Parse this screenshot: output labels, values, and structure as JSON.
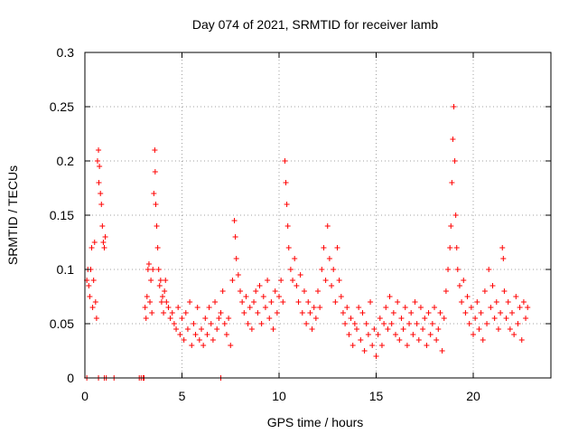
{
  "chart_data": {
    "type": "scatter",
    "title": "Day 074 of 2021, SRMTID for receiver lamb",
    "xlabel": "GPS time / hours",
    "ylabel": "SRMTID / TECUs",
    "xlim": [
      0,
      24
    ],
    "ylim": [
      0,
      0.3
    ],
    "xticks": [
      0,
      5,
      10,
      15,
      20
    ],
    "xtick_labels": [
      "0",
      "5",
      "10",
      "15",
      "20"
    ],
    "yticks": [
      0,
      0.05,
      0.1,
      0.15,
      0.2,
      0.25,
      0.3
    ],
    "ytick_labels": [
      "0",
      "0.05",
      "0.1",
      "0.15",
      "0.2",
      "0.25",
      "0.3"
    ],
    "grid": true,
    "marker": "+",
    "color": "#ff0000",
    "series": [
      {
        "name": "SRMTID",
        "points": [
          [
            0.1,
            0.09
          ],
          [
            0.15,
            0.1
          ],
          [
            0.2,
            0.085
          ],
          [
            0.25,
            0.075
          ],
          [
            0.3,
            0.1
          ],
          [
            0.35,
            0.12
          ],
          [
            0.4,
            0.065
          ],
          [
            0.45,
            0.09
          ],
          [
            0.5,
            0.125
          ],
          [
            0.55,
            0.07
          ],
          [
            0.6,
            0.055
          ],
          [
            0.65,
            0.2
          ],
          [
            0.7,
            0.21
          ],
          [
            0.72,
            0.18
          ],
          [
            0.75,
            0.195
          ],
          [
            0.8,
            0.17
          ],
          [
            0.85,
            0.16
          ],
          [
            0.9,
            0.14
          ],
          [
            0.95,
            0.125
          ],
          [
            1.0,
            0.12
          ],
          [
            1.05,
            0.13
          ],
          [
            3.1,
            0.065
          ],
          [
            3.15,
            0.055
          ],
          [
            3.2,
            0.075
          ],
          [
            3.25,
            0.1
          ],
          [
            3.3,
            0.105
          ],
          [
            3.35,
            0.07
          ],
          [
            3.4,
            0.09
          ],
          [
            3.45,
            0.06
          ],
          [
            3.5,
            0.1
          ],
          [
            3.55,
            0.17
          ],
          [
            3.6,
            0.21
          ],
          [
            3.62,
            0.19
          ],
          [
            3.65,
            0.16
          ],
          [
            3.7,
            0.14
          ],
          [
            3.75,
            0.12
          ],
          [
            3.8,
            0.1
          ],
          [
            3.85,
            0.085
          ],
          [
            3.9,
            0.09
          ],
          [
            3.95,
            0.07
          ],
          [
            4.0,
            0.075
          ],
          [
            4.05,
            0.06
          ],
          [
            4.1,
            0.08
          ],
          [
            4.15,
            0.09
          ],
          [
            4.2,
            0.07
          ],
          [
            4.3,
            0.065
          ],
          [
            4.4,
            0.055
          ],
          [
            4.5,
            0.06
          ],
          [
            4.6,
            0.05
          ],
          [
            4.7,
            0.045
          ],
          [
            4.8,
            0.065
          ],
          [
            4.9,
            0.04
          ],
          [
            5.0,
            0.055
          ],
          [
            5.1,
            0.035
          ],
          [
            5.2,
            0.06
          ],
          [
            5.3,
            0.045
          ],
          [
            5.4,
            0.07
          ],
          [
            5.5,
            0.03
          ],
          [
            5.6,
            0.05
          ],
          [
            5.7,
            0.04
          ],
          [
            5.8,
            0.065
          ],
          [
            5.9,
            0.035
          ],
          [
            6.0,
            0.045
          ],
          [
            6.1,
            0.03
          ],
          [
            6.2,
            0.055
          ],
          [
            6.3,
            0.04
          ],
          [
            6.4,
            0.065
          ],
          [
            6.5,
            0.05
          ],
          [
            6.6,
            0.035
          ],
          [
            6.7,
            0.07
          ],
          [
            6.8,
            0.045
          ],
          [
            6.9,
            0.055
          ],
          [
            7.0,
            0.06
          ],
          [
            7.1,
            0.08
          ],
          [
            7.2,
            0.05
          ],
          [
            7.3,
            0.04
          ],
          [
            7.4,
            0.055
          ],
          [
            7.5,
            0.03
          ],
          [
            7.6,
            0.09
          ],
          [
            7.7,
            0.145
          ],
          [
            7.75,
            0.13
          ],
          [
            7.8,
            0.11
          ],
          [
            7.9,
            0.095
          ],
          [
            8.0,
            0.08
          ],
          [
            8.1,
            0.07
          ],
          [
            8.2,
            0.06
          ],
          [
            8.3,
            0.075
          ],
          [
            8.4,
            0.05
          ],
          [
            8.5,
            0.065
          ],
          [
            8.6,
            0.045
          ],
          [
            8.7,
            0.07
          ],
          [
            8.8,
            0.08
          ],
          [
            8.9,
            0.06
          ],
          [
            9.0,
            0.085
          ],
          [
            9.1,
            0.05
          ],
          [
            9.2,
            0.075
          ],
          [
            9.3,
            0.065
          ],
          [
            9.4,
            0.09
          ],
          [
            9.5,
            0.055
          ],
          [
            9.6,
            0.07
          ],
          [
            9.7,
            0.045
          ],
          [
            9.8,
            0.08
          ],
          [
            9.9,
            0.06
          ],
          [
            10.0,
            0.075
          ],
          [
            10.1,
            0.09
          ],
          [
            10.2,
            0.07
          ],
          [
            10.3,
            0.2
          ],
          [
            10.35,
            0.18
          ],
          [
            10.4,
            0.16
          ],
          [
            10.45,
            0.14
          ],
          [
            10.5,
            0.12
          ],
          [
            10.6,
            0.1
          ],
          [
            10.7,
            0.09
          ],
          [
            10.8,
            0.11
          ],
          [
            10.9,
            0.085
          ],
          [
            11.0,
            0.07
          ],
          [
            11.1,
            0.095
          ],
          [
            11.2,
            0.06
          ],
          [
            11.3,
            0.08
          ],
          [
            11.4,
            0.05
          ],
          [
            11.5,
            0.07
          ],
          [
            11.6,
            0.06
          ],
          [
            11.7,
            0.045
          ],
          [
            11.8,
            0.065
          ],
          [
            11.9,
            0.055
          ],
          [
            12.0,
            0.08
          ],
          [
            12.1,
            0.065
          ],
          [
            12.2,
            0.1
          ],
          [
            12.3,
            0.12
          ],
          [
            12.4,
            0.09
          ],
          [
            12.5,
            0.14
          ],
          [
            12.6,
            0.11
          ],
          [
            12.7,
            0.085
          ],
          [
            12.8,
            0.1
          ],
          [
            12.9,
            0.07
          ],
          [
            13.0,
            0.12
          ],
          [
            13.1,
            0.09
          ],
          [
            13.2,
            0.075
          ],
          [
            13.3,
            0.06
          ],
          [
            13.4,
            0.05
          ],
          [
            13.5,
            0.065
          ],
          [
            13.6,
            0.04
          ],
          [
            13.7,
            0.055
          ],
          [
            13.8,
            0.03
          ],
          [
            13.9,
            0.05
          ],
          [
            14.0,
            0.045
          ],
          [
            14.1,
            0.065
          ],
          [
            14.2,
            0.035
          ],
          [
            14.3,
            0.06
          ],
          [
            14.4,
            0.025
          ],
          [
            14.5,
            0.05
          ],
          [
            14.6,
            0.04
          ],
          [
            14.7,
            0.07
          ],
          [
            14.8,
            0.03
          ],
          [
            14.9,
            0.045
          ],
          [
            15.0,
            0.02
          ],
          [
            15.1,
            0.04
          ],
          [
            15.2,
            0.055
          ],
          [
            15.3,
            0.03
          ],
          [
            15.4,
            0.05
          ],
          [
            15.5,
            0.065
          ],
          [
            15.6,
            0.045
          ],
          [
            15.7,
            0.075
          ],
          [
            15.8,
            0.05
          ],
          [
            15.9,
            0.06
          ],
          [
            16.0,
            0.04
          ],
          [
            16.1,
            0.07
          ],
          [
            16.2,
            0.035
          ],
          [
            16.3,
            0.055
          ],
          [
            16.4,
            0.045
          ],
          [
            16.5,
            0.065
          ],
          [
            16.6,
            0.03
          ],
          [
            16.7,
            0.05
          ],
          [
            16.8,
            0.06
          ],
          [
            16.9,
            0.04
          ],
          [
            17.0,
            0.07
          ],
          [
            17.1,
            0.05
          ],
          [
            17.2,
            0.035
          ],
          [
            17.3,
            0.065
          ],
          [
            17.4,
            0.045
          ],
          [
            17.5,
            0.055
          ],
          [
            17.6,
            0.03
          ],
          [
            17.7,
            0.06
          ],
          [
            17.8,
            0.04
          ],
          [
            17.9,
            0.05
          ],
          [
            18.0,
            0.065
          ],
          [
            18.1,
            0.035
          ],
          [
            18.2,
            0.045
          ],
          [
            18.3,
            0.06
          ],
          [
            18.4,
            0.025
          ],
          [
            18.5,
            0.055
          ],
          [
            18.6,
            0.08
          ],
          [
            18.7,
            0.1
          ],
          [
            18.8,
            0.12
          ],
          [
            18.85,
            0.14
          ],
          [
            18.9,
            0.18
          ],
          [
            18.95,
            0.22
          ],
          [
            19.0,
            0.25
          ],
          [
            19.05,
            0.2
          ],
          [
            19.1,
            0.15
          ],
          [
            19.15,
            0.12
          ],
          [
            19.2,
            0.1
          ],
          [
            19.3,
            0.085
          ],
          [
            19.4,
            0.07
          ],
          [
            19.5,
            0.09
          ],
          [
            19.6,
            0.06
          ],
          [
            19.7,
            0.075
          ],
          [
            19.8,
            0.05
          ],
          [
            19.9,
            0.065
          ],
          [
            20.0,
            0.04
          ],
          [
            20.1,
            0.055
          ],
          [
            20.2,
            0.07
          ],
          [
            20.3,
            0.045
          ],
          [
            20.4,
            0.06
          ],
          [
            20.5,
            0.035
          ],
          [
            20.6,
            0.08
          ],
          [
            20.7,
            0.05
          ],
          [
            20.8,
            0.1
          ],
          [
            20.9,
            0.065
          ],
          [
            21.0,
            0.085
          ],
          [
            21.1,
            0.055
          ],
          [
            21.2,
            0.07
          ],
          [
            21.3,
            0.045
          ],
          [
            21.4,
            0.06
          ],
          [
            21.5,
            0.12
          ],
          [
            21.55,
            0.11
          ],
          [
            21.6,
            0.08
          ],
          [
            21.7,
            0.055
          ],
          [
            21.8,
            0.07
          ],
          [
            21.9,
            0.045
          ],
          [
            22.0,
            0.06
          ],
          [
            22.1,
            0.04
          ],
          [
            22.2,
            0.075
          ],
          [
            22.3,
            0.05
          ],
          [
            22.4,
            0.065
          ],
          [
            22.5,
            0.035
          ],
          [
            22.6,
            0.07
          ],
          [
            22.7,
            0.055
          ],
          [
            22.8,
            0.065
          ],
          [
            0.1,
            0.0
          ],
          [
            0.7,
            0.0
          ],
          [
            1.0,
            0.0
          ],
          [
            1.1,
            0.0
          ],
          [
            1.5,
            0.0
          ],
          [
            2.8,
            0.0
          ],
          [
            2.9,
            0.0
          ],
          [
            3.0,
            0.0
          ],
          [
            3.05,
            0.0
          ],
          [
            7.0,
            0.0
          ]
        ]
      }
    ]
  }
}
